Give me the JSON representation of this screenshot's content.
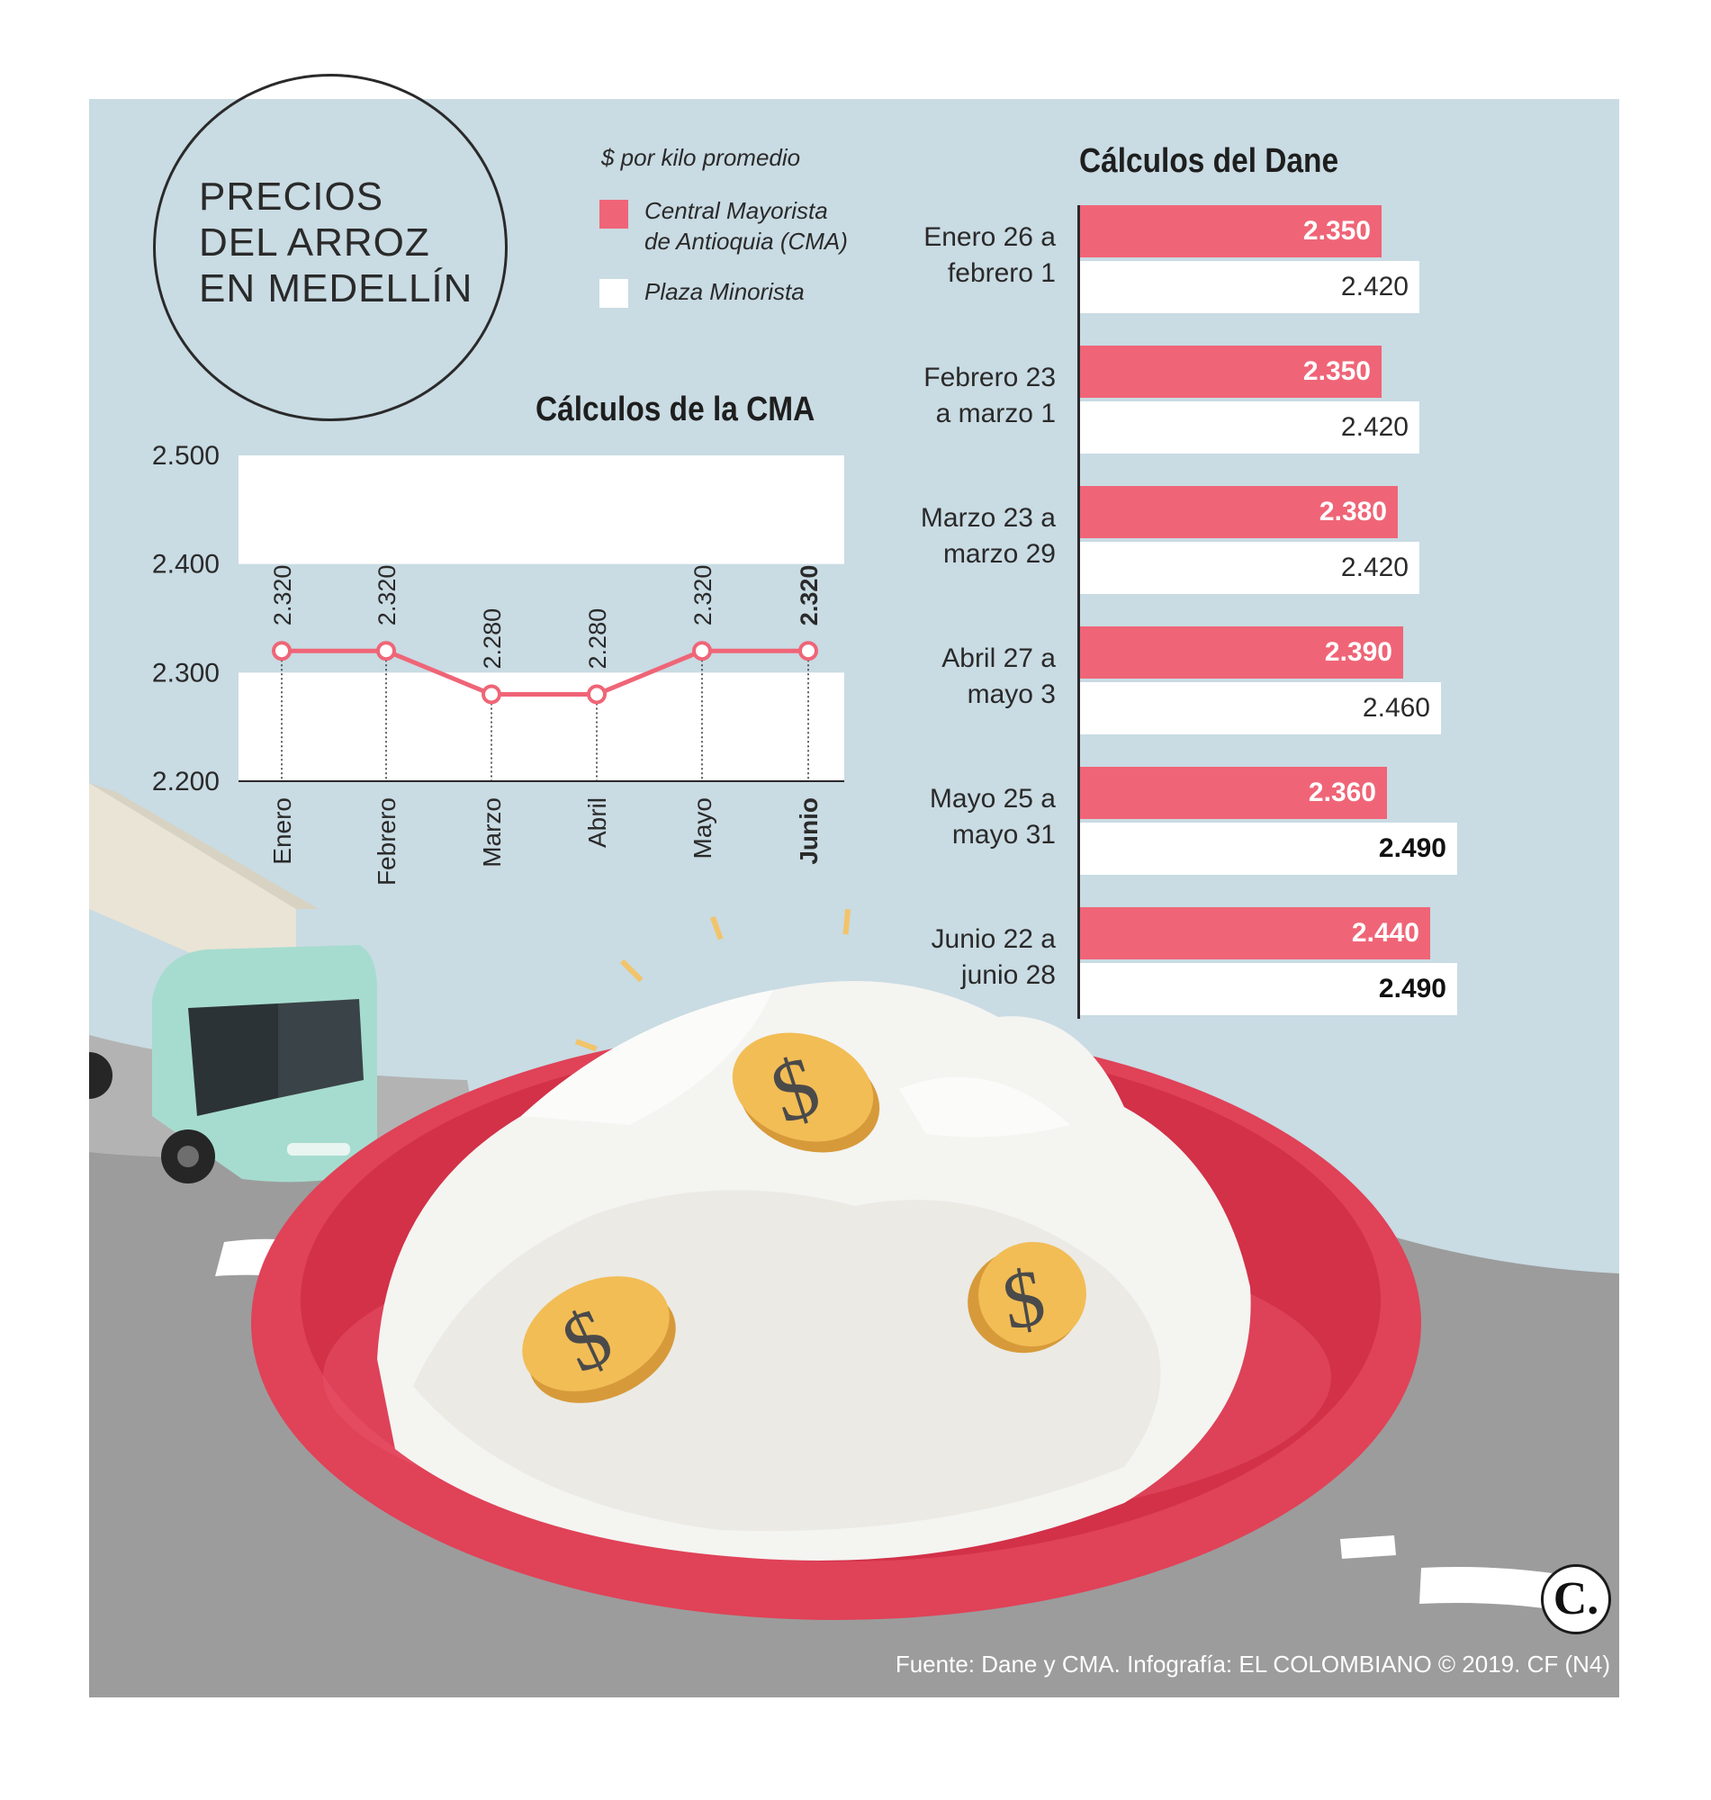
{
  "title": {
    "lines": [
      "PRECIOS",
      "DEL ARROZ",
      "EN MEDELLÍN"
    ]
  },
  "legend": {
    "unit": "$ por kilo promedio",
    "items": [
      {
        "label_lines": [
          "Central Mayorista",
          "de Antioquia (CMA)"
        ],
        "color": "#ef6577"
      },
      {
        "label_lines": [
          "Plaza Minorista"
        ],
        "color": "#ffffff"
      }
    ]
  },
  "source": "Fuente: Dane y CMA. Infografía: EL COLOMBIANO © 2019. CF (N4)",
  "logo_text": "C.",
  "chart_data": [
    {
      "type": "line",
      "title": "Cálculos de la CMA",
      "categories": [
        "Enero",
        "Febrero",
        "Marzo",
        "Abril",
        "Mayo",
        "Junio"
      ],
      "values": [
        2320,
        2320,
        2280,
        2280,
        2320,
        2320
      ],
      "value_labels": [
        "2.320",
        "2.320",
        "2.280",
        "2.280",
        "2.320",
        "2.320"
      ],
      "highlight_last": true,
      "ylim": [
        2200,
        2500
      ],
      "yticks": [
        2200,
        2300,
        2400,
        2500
      ],
      "ytick_labels": [
        "2.200",
        "2.300",
        "2.400",
        "2.500"
      ],
      "color": "#ef6577"
    },
    {
      "type": "bar",
      "orientation": "horizontal",
      "title": "Cálculos del Dane",
      "categories": [
        [
          "Enero 26 a",
          "febrero 1"
        ],
        [
          "Febrero 23",
          "a marzo 1"
        ],
        [
          "Marzo 23 a",
          "marzo 29"
        ],
        [
          "Abril 27 a",
          "mayo 3"
        ],
        [
          "Mayo 25 a",
          "mayo 31"
        ],
        [
          "Junio 22 a",
          "junio 28"
        ]
      ],
      "series": [
        {
          "key": "cma",
          "color": "#ef6577",
          "values": [
            2350,
            2350,
            2380,
            2390,
            2360,
            2440
          ],
          "labels": [
            "2.350",
            "2.350",
            "2.380",
            "2.390",
            "2.360",
            "2.440"
          ]
        },
        {
          "key": "plaza",
          "color": "#ffffff",
          "values": [
            2420,
            2420,
            2420,
            2460,
            2490,
            2490
          ],
          "labels": [
            "2.420",
            "2.420",
            "2.420",
            "2.460",
            "2.490",
            "2.490"
          ],
          "bold": [
            false,
            false,
            false,
            false,
            true,
            true
          ]
        }
      ]
    }
  ]
}
